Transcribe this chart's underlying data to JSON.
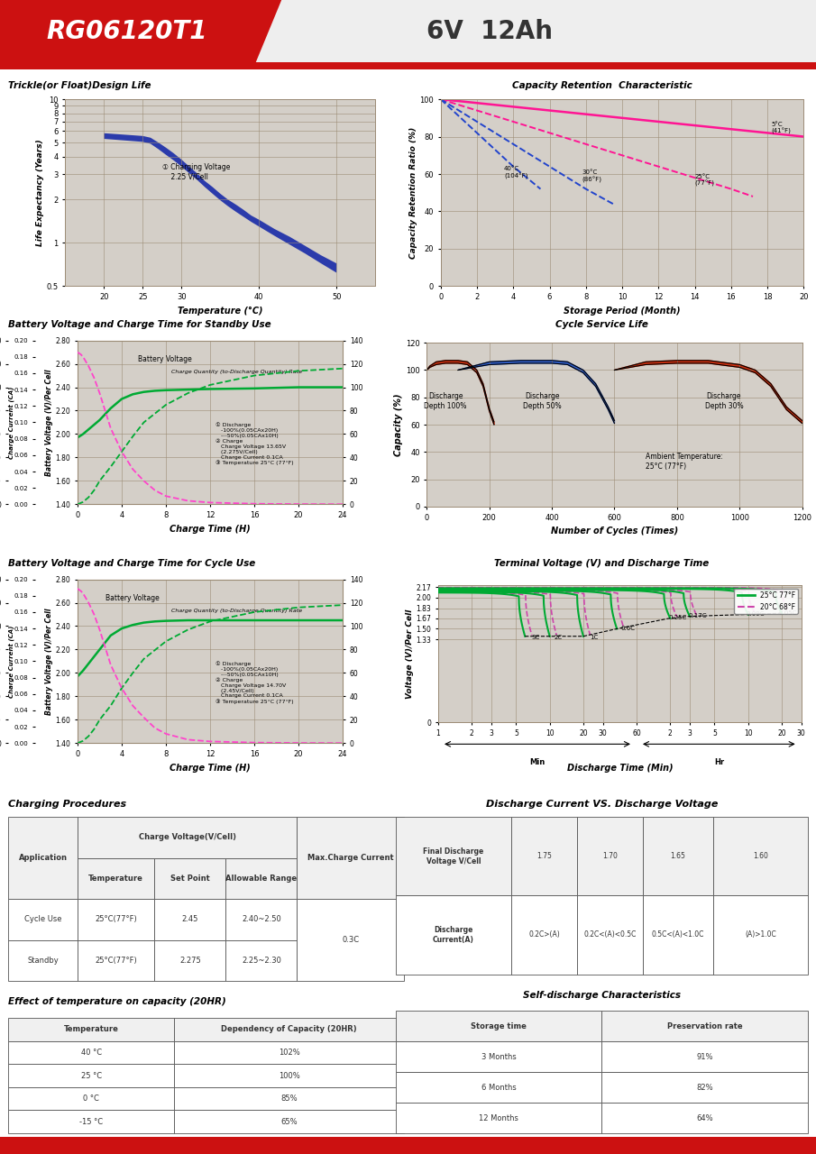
{
  "title_model": "RG06120T1",
  "title_spec": "6V  12Ah",
  "trickle_title": "Trickle(or Float)Design Life",
  "trickle_xlabel": "Temperature (°C)",
  "trickle_ylabel": "Life Expectancy (Years)",
  "capacity_title": "Capacity Retention  Characteristic",
  "capacity_xlabel": "Storage Period (Month)",
  "capacity_ylabel": "Capacity Retention Ratio (%)",
  "standby_title": "Battery Voltage and Charge Time for Standby Use",
  "standby_xlabel": "Charge Time (H)",
  "cycle_service_title": "Cycle Service Life",
  "cycle_service_xlabel": "Number of Cycles (Times)",
  "cycle_service_ylabel": "Capacity (%)",
  "cycle_charge_title": "Battery Voltage and Charge Time for Cycle Use",
  "cycle_charge_xlabel": "Charge Time (H)",
  "terminal_title": "Terminal Voltage (V) and Discharge Time",
  "terminal_xlabel": "Discharge Time (Min)",
  "terminal_ylabel": "Voltage (V)/Per Cell",
  "charging_title": "Charging Procedures",
  "discharge_title": "Discharge Current VS. Discharge Voltage",
  "temp_capacity_title": "Effect of temperature on capacity (20HR)",
  "self_discharge_title": "Self-discharge Characteristics",
  "plot_bg": "#d4cfc8",
  "grid_color": "#9b8b75",
  "page_bg": "#ffffff"
}
